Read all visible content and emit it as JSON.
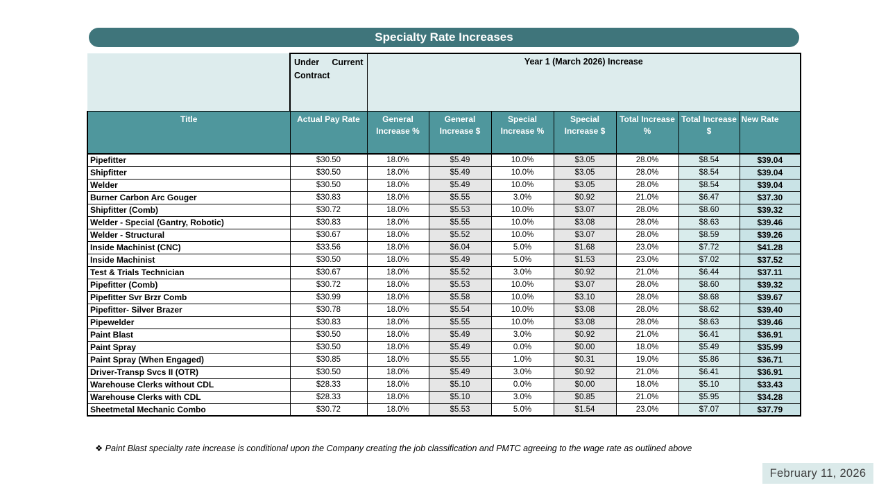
{
  "title": "Specialty Rate Increases",
  "table": {
    "group_headers": {
      "under_current": "Under Current Contract",
      "year1": "Year 1 (March 2026) Increase"
    },
    "columns": [
      "Title",
      "Actual Pay Rate",
      "General Increase %",
      "General Increase $",
      "Special Increase %",
      "Special Increase $",
      "Total Increase %",
      "Total Increase $",
      "New Rate"
    ],
    "rows": [
      [
        "Pipefitter",
        "$30.50",
        "18.0%",
        "$5.49",
        "10.0%",
        "$3.05",
        "28.0%",
        "$8.54",
        "$39.04"
      ],
      [
        "Shipfitter",
        "$30.50",
        "18.0%",
        "$5.49",
        "10.0%",
        "$3.05",
        "28.0%",
        "$8.54",
        "$39.04"
      ],
      [
        "Welder",
        "$30.50",
        "18.0%",
        "$5.49",
        "10.0%",
        "$3.05",
        "28.0%",
        "$8.54",
        "$39.04"
      ],
      [
        "Burner Carbon Arc Gouger",
        "$30.83",
        "18.0%",
        "$5.55",
        "3.0%",
        "$0.92",
        "21.0%",
        "$6.47",
        "$37.30"
      ],
      [
        "Shipfitter (Comb)",
        "$30.72",
        "18.0%",
        "$5.53",
        "10.0%",
        "$3.07",
        "28.0%",
        "$8.60",
        "$39.32"
      ],
      [
        "Welder - Special (Gantry, Robotic)",
        "$30.83",
        "18.0%",
        "$5.55",
        "10.0%",
        "$3.08",
        "28.0%",
        "$8.63",
        "$39.46"
      ],
      [
        "Welder - Structural",
        "$30.67",
        "18.0%",
        "$5.52",
        "10.0%",
        "$3.07",
        "28.0%",
        "$8.59",
        "$39.26"
      ],
      [
        "Inside Machinist (CNC)",
        "$33.56",
        "18.0%",
        "$6.04",
        "5.0%",
        "$1.68",
        "23.0%",
        "$7.72",
        "$41.28"
      ],
      [
        "Inside Machinist",
        "$30.50",
        "18.0%",
        "$5.49",
        "5.0%",
        "$1.53",
        "23.0%",
        "$7.02",
        "$37.52"
      ],
      [
        "Test & Trials Technician",
        "$30.67",
        "18.0%",
        "$5.52",
        "3.0%",
        "$0.92",
        "21.0%",
        "$6.44",
        "$37.11"
      ],
      [
        "Pipefitter (Comb)",
        "$30.72",
        "18.0%",
        "$5.53",
        "10.0%",
        "$3.07",
        "28.0%",
        "$8.60",
        "$39.32"
      ],
      [
        "Pipefitter Svr Brzr Comb",
        "$30.99",
        "18.0%",
        "$5.58",
        "10.0%",
        "$3.10",
        "28.0%",
        "$8.68",
        "$39.67"
      ],
      [
        "Pipefitter- Silver Brazer",
        "$30.78",
        "18.0%",
        "$5.54",
        "10.0%",
        "$3.08",
        "28.0%",
        "$8.62",
        "$39.40"
      ],
      [
        "Pipewelder",
        "$30.83",
        "18.0%",
        "$5.55",
        "10.0%",
        "$3.08",
        "28.0%",
        "$8.63",
        "$39.46"
      ],
      [
        "Paint Blast",
        "$30.50",
        "18.0%",
        "$5.49",
        "3.0%",
        "$0.92",
        "21.0%",
        "$6.41",
        "$36.91"
      ],
      [
        "Paint Spray",
        "$30.50",
        "18.0%",
        "$5.49",
        "0.0%",
        "$0.00",
        "18.0%",
        "$5.49",
        "$35.99"
      ],
      [
        "Paint Spray (When Engaged)",
        "$30.85",
        "18.0%",
        "$5.55",
        "1.0%",
        "$0.31",
        "19.0%",
        "$5.86",
        "$36.71"
      ],
      [
        "Driver-Transp Svcs II (OTR)",
        "$30.50",
        "18.0%",
        "$5.49",
        "3.0%",
        "$0.92",
        "21.0%",
        "$6.41",
        "$36.91"
      ],
      [
        "Warehouse Clerks without CDL",
        "$28.33",
        "18.0%",
        "$5.10",
        "0.0%",
        "$0.00",
        "18.0%",
        "$5.10",
        "$33.43"
      ],
      [
        "Warehouse Clerks with CDL",
        "$28.33",
        "18.0%",
        "$5.10",
        "3.0%",
        "$0.85",
        "21.0%",
        "$5.95",
        "$34.28"
      ],
      [
        "Sheetmetal Mechanic Combo",
        "$30.72",
        "18.0%",
        "$5.53",
        "5.0%",
        "$1.54",
        "23.0%",
        "$7.07",
        "$37.79"
      ]
    ]
  },
  "footnote": "❖ Paint Blast specialty rate increase is conditional upon the Company creating the job classification and PMTC agreeing to the wage rate as outlined above",
  "date": "February 11, 2026",
  "colors": {
    "title_bar": "#3F757B",
    "column_header": "#4F979D",
    "group_header_bg": "#DDECED",
    "dollar_column_bg": "#E6E6E6",
    "total_dollar_column_bg": "#D9ECEC",
    "new_rate_column_bg": "#C9E3E6",
    "date_box_bg": "#DBEAEA"
  }
}
